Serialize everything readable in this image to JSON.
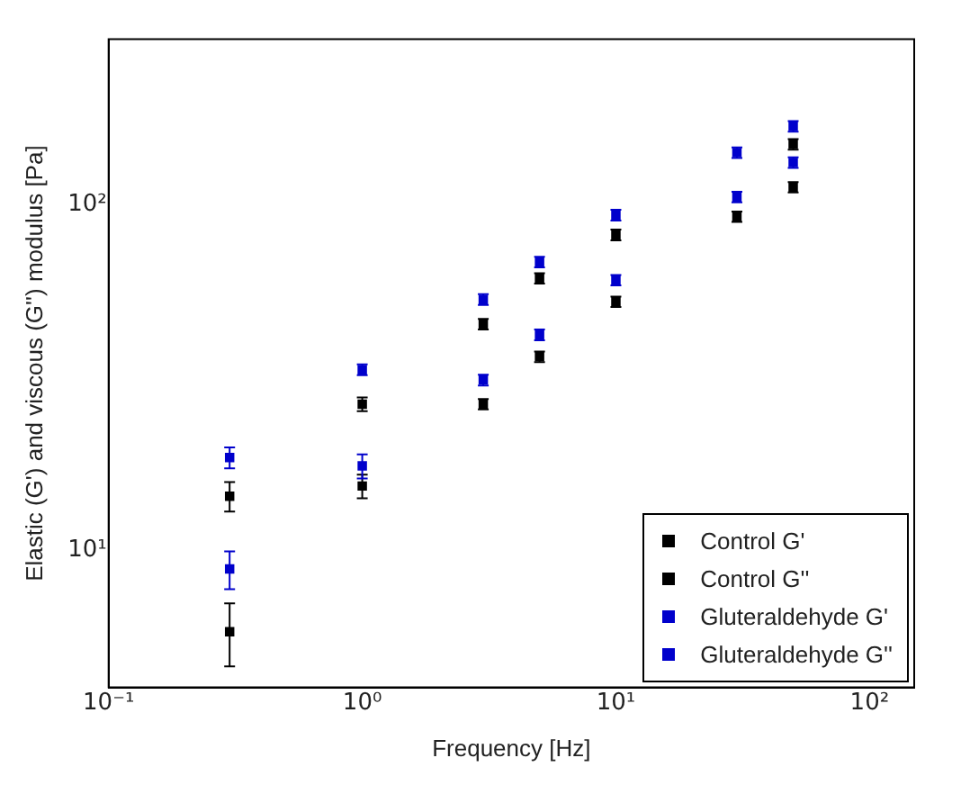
{
  "chart_data": {
    "type": "scatter",
    "xlabel": "Frequency [Hz]",
    "ylabel": "Elastic (G') and viscous (G'') modulus [Pa]",
    "x": [
      0.3,
      1,
      3,
      5,
      10,
      30,
      50
    ],
    "series": [
      {
        "name": "Control G'",
        "color": "#000000",
        "values": [
          14.3,
          26.4,
          45,
          61,
          81.5,
          92,
          149
        ],
        "errors": [
          1.4,
          1.2,
          1.6,
          2.1,
          2.9,
          3.2,
          5.2
        ]
      },
      {
        "name": "Control G''",
        "color": "#000000",
        "values": [
          5.8,
          15.3,
          26.4,
          36.2,
          52.2,
          null,
          112
        ],
        "errors": [
          1.2,
          1.2,
          0.9,
          1.3,
          1.8,
          null,
          3.9
        ]
      },
      {
        "name": "Gluteraldehyde G'",
        "color": "#0000cc",
        "values": [
          18.5,
          33.2,
          53,
          68,
          93,
          141,
          168
        ],
        "errors": [
          1.3,
          1.2,
          1.9,
          2.4,
          3.3,
          4.9,
          5.9
        ]
      },
      {
        "name": "Gluteraldehyde G''",
        "color": "#0000cc",
        "values": [
          8.8,
          17.5,
          31,
          41.9,
          60.3,
          105,
          132
        ],
        "errors": [
          1.1,
          1.4,
          1.1,
          1.5,
          2.1,
          3.7,
          4.6
        ]
      }
    ],
    "log": "xy",
    "xlim": [
      0.1,
      150
    ],
    "ylim": [
      4,
      300
    ],
    "xticks": [
      {
        "value": 0.1,
        "label": "10⁻¹"
      },
      {
        "value": 1,
        "label": "10⁰"
      },
      {
        "value": 10,
        "label": "10¹"
      },
      {
        "value": 100,
        "label": "10²"
      }
    ],
    "yticks": [
      {
        "value": 10,
        "label": "10¹"
      },
      {
        "value": 100,
        "label": "10²"
      }
    ],
    "marker": "square",
    "grid": false,
    "legend": "bottom right"
  }
}
